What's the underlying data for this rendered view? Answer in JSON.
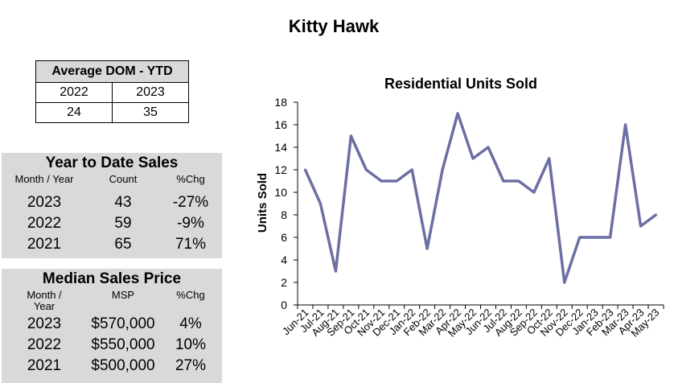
{
  "page_title": "Kitty Hawk",
  "dom_table": {
    "title": "Average DOM - YTD",
    "years": [
      "2022",
      "2023"
    ],
    "values": [
      "24",
      "35"
    ]
  },
  "ytd_sales": {
    "title": "Year to Date Sales",
    "headers": [
      "Month / Year",
      "Count",
      "%Chg"
    ],
    "rows": [
      {
        "year": "2023",
        "count": "43",
        "chg": "-27%"
      },
      {
        "year": "2022",
        "count": "59",
        "chg": "-9%"
      },
      {
        "year": "2021",
        "count": "65",
        "chg": "71%"
      }
    ]
  },
  "median_sales": {
    "title": "Median Sales Price",
    "headers": [
      "Month / Year",
      "MSP",
      "%Chg"
    ],
    "header_month_line1": "Month /",
    "header_month_line2": "Year",
    "rows": [
      {
        "year": "2023",
        "msp": "$570,000",
        "chg": "4%"
      },
      {
        "year": "2022",
        "msp": "$550,000",
        "chg": "10%"
      },
      {
        "year": "2021",
        "msp": "$500,000",
        "chg": "27%"
      }
    ]
  },
  "chart_data": {
    "type": "line",
    "title": "Residential Units Sold",
    "xlabel": "",
    "ylabel": "Units Sold",
    "ylim": [
      0,
      18
    ],
    "yticks": [
      0,
      2,
      4,
      6,
      8,
      10,
      12,
      14,
      16,
      18
    ],
    "grid": false,
    "line_color": "#6b6fa3",
    "categories": [
      "Jun-21",
      "Jul-21",
      "Aug-21",
      "Sep-21",
      "Oct-21",
      "Nov-21",
      "Dec-21",
      "Jan-22",
      "Feb-22",
      "Mar-22",
      "Apr-22",
      "May-22",
      "Jun-22",
      "Jul-22",
      "Aug-22",
      "Sep-22",
      "Oct-22",
      "Nov-22",
      "Dec-22",
      "Jan-23",
      "Feb-23",
      "Mar-23",
      "Apr-23",
      "May-23"
    ],
    "values": [
      12,
      9,
      3,
      15,
      12,
      11,
      11,
      12,
      5,
      12,
      17,
      13,
      14,
      11,
      11,
      10,
      13,
      2,
      6,
      6,
      6,
      16,
      7,
      8
    ]
  }
}
